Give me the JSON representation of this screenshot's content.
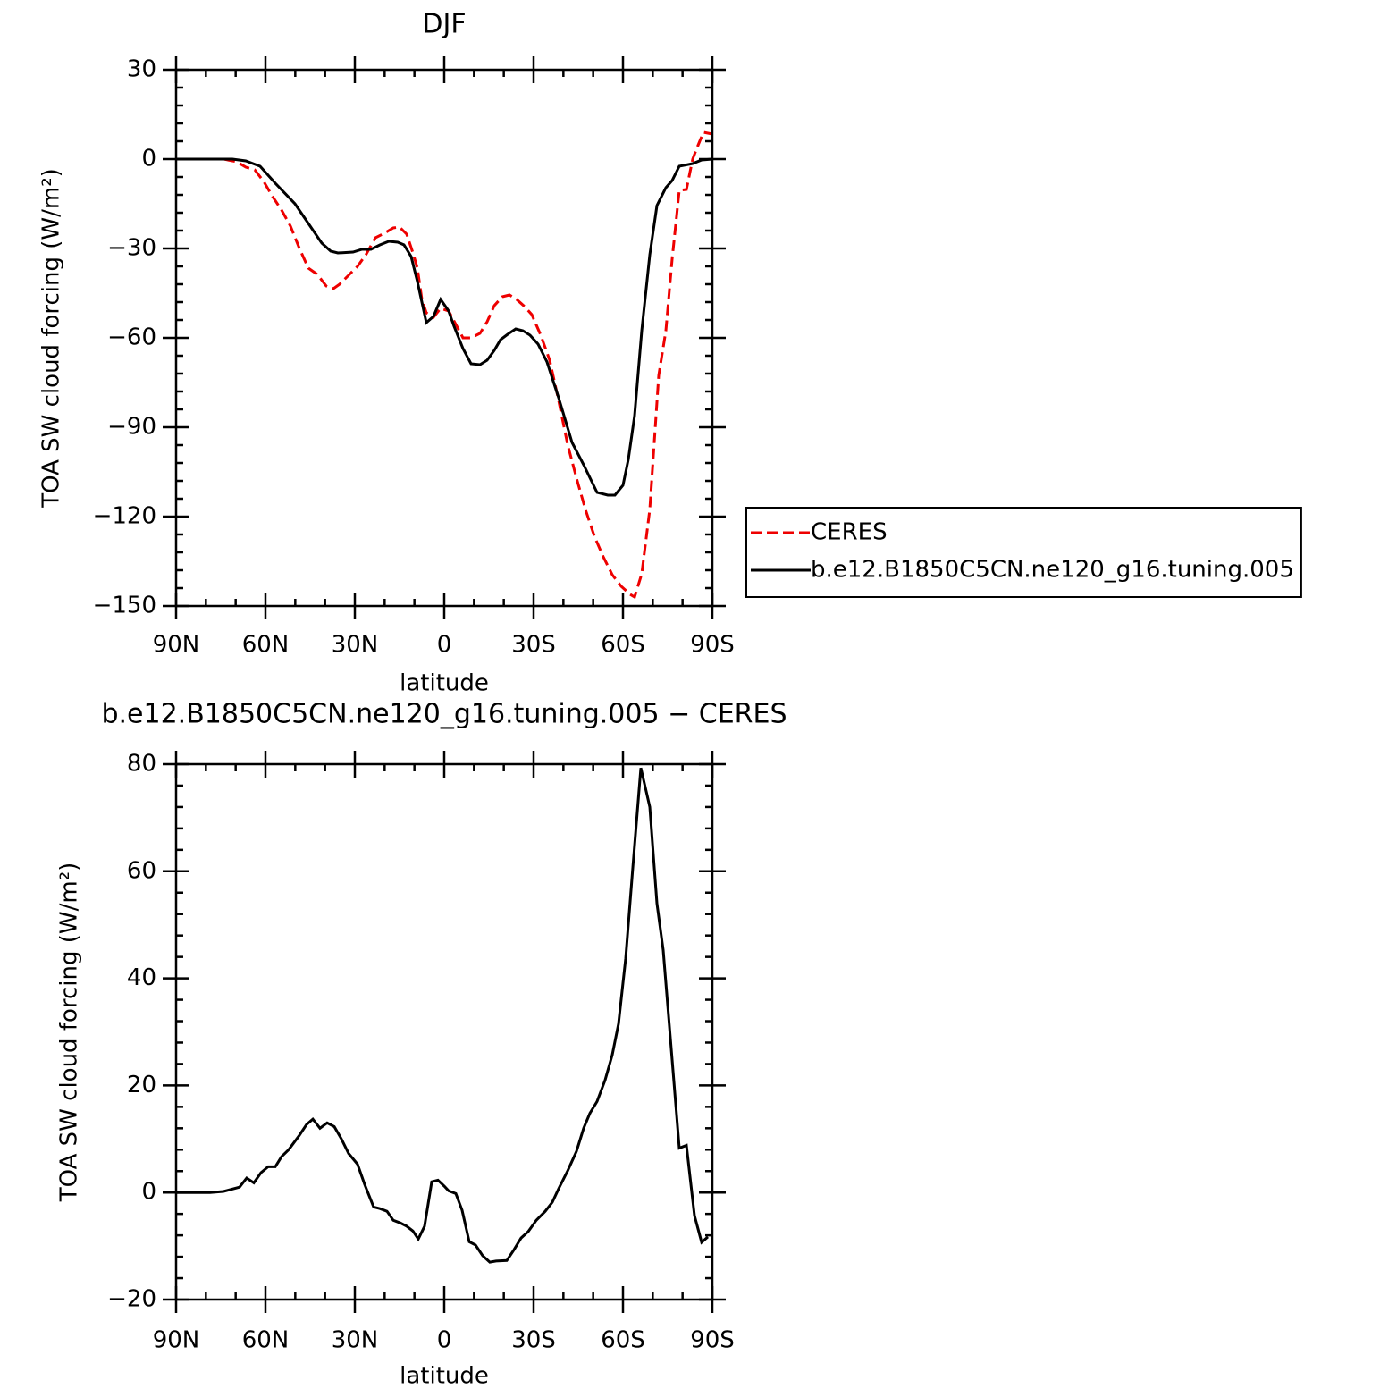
{
  "chart_data": [
    {
      "type": "line",
      "title": "DJF",
      "xlabel": "latitude",
      "ylabel": "TOA SW cloud forcing (W/m²)",
      "xlim": [
        90,
        -90
      ],
      "xticks": [
        {
          "value": 90,
          "label": "90N"
        },
        {
          "value": 60,
          "label": "60N"
        },
        {
          "value": 30,
          "label": "30N"
        },
        0,
        {
          "value": -30,
          "label": "30S"
        },
        {
          "value": -60,
          "label": "60S"
        },
        {
          "value": -90,
          "label": "90S"
        }
      ],
      "xminorticks": [
        80,
        70,
        50,
        40,
        20,
        10,
        -10,
        -20,
        -40,
        -50,
        -70,
        -80
      ],
      "ylim": [
        -150,
        30
      ],
      "yticks": [
        -150,
        -120,
        -90,
        -60,
        -30,
        0,
        30
      ],
      "yminorticks": [
        -144,
        -138,
        -132,
        -126,
        -114,
        -108,
        -102,
        -96,
        -84,
        -78,
        -72,
        -66,
        -54,
        -48,
        -42,
        -36,
        -24,
        -18,
        -12,
        -6,
        6,
        12,
        18,
        24
      ],
      "legend": "right",
      "series": [
        {
          "name": "CERES",
          "color": "#ee0000",
          "dash": "dashed",
          "x": [
            90,
            74.1,
            69.6,
            66.6,
            63.6,
            60.6,
            57.6,
            54.6,
            51.6,
            48.6,
            45.6,
            42.6,
            39.6,
            37.2,
            35.1,
            32.1,
            29.1,
            26.1,
            23.1,
            20.1,
            17.1,
            15,
            12.6,
            10.5,
            9,
            7.5,
            6,
            3.6,
            1.2,
            -1.5,
            -3.9,
            -6.3,
            -9,
            -12,
            -14.4,
            -16.8,
            -19.5,
            -21.9,
            -24.3,
            -27,
            -29.4,
            -32.4,
            -35.4,
            -38.4,
            -41.4,
            -44.4,
            -47.4,
            -50.4,
            -53.4,
            -56.4,
            -59.4,
            -62.4,
            -63.9,
            -66.3,
            -69,
            -72,
            -74.4,
            -76.5,
            -78.9,
            -81.3,
            -83.4,
            -84.9,
            -87,
            -90
          ],
          "values": [
            0,
            0,
            -0.9,
            -2.7,
            -3.6,
            -7.5,
            -12.6,
            -17.1,
            -22.5,
            -30,
            -36.6,
            -38.7,
            -42.6,
            -43.5,
            -42,
            -39,
            -36,
            -31.8,
            -26.4,
            -24.9,
            -23.1,
            -22.8,
            -25.2,
            -31.5,
            -36.6,
            -47.1,
            -51.6,
            -53.1,
            -50.1,
            -51,
            -55.5,
            -60,
            -60,
            -58.5,
            -54.6,
            -49.2,
            -46.2,
            -45.6,
            -47.1,
            -49.5,
            -52.2,
            -59.1,
            -67.5,
            -81,
            -95.7,
            -107.1,
            -117.6,
            -126.6,
            -133.5,
            -139.5,
            -143.4,
            -146.1,
            -147,
            -139.2,
            -117.6,
            -72.6,
            -57.6,
            -33.6,
            -10.5,
            -10.2,
            0,
            3.9,
            9,
            8.4
          ]
        },
        {
          "name": "b.e12.B1850C5CN.ne120_g16.tuning.005",
          "color": "#000000",
          "dash": "solid",
          "x": [
            90,
            71.1,
            66.6,
            61.8,
            56.7,
            50.1,
            45.6,
            41.1,
            38.1,
            35.7,
            30.6,
            27.6,
            24.6,
            21.6,
            18.6,
            15.6,
            13.5,
            11.1,
            9,
            6,
            3.6,
            1.2,
            -1.5,
            -3.3,
            -6.3,
            -9,
            -12,
            -14.4,
            -16.8,
            -18.9,
            -21.3,
            -24,
            -26.4,
            -28.8,
            -31.5,
            -34.5,
            -38.4,
            -42.9,
            -46.8,
            -51.3,
            -54.9,
            -57.3,
            -60,
            -61.8,
            -63.9,
            -66.3,
            -69,
            -71.4,
            -74.4,
            -76.5,
            -78.9,
            -83.4,
            -86.4,
            -90
          ],
          "values": [
            0,
            0,
            -0.6,
            -2.4,
            -8.1,
            -15,
            -21.6,
            -28.2,
            -30.9,
            -31.5,
            -31.2,
            -30.3,
            -30.3,
            -28.8,
            -27.6,
            -27.9,
            -28.8,
            -32.7,
            -41.1,
            -54.9,
            -52.8,
            -47.1,
            -51,
            -56.1,
            -63.6,
            -68.7,
            -69,
            -67.5,
            -64.2,
            -60.6,
            -58.8,
            -57,
            -57.6,
            -59.1,
            -62.1,
            -68.1,
            -80.1,
            -95.1,
            -102.6,
            -111.9,
            -112.8,
            -112.8,
            -109.5,
            -100.8,
            -86.1,
            -57.6,
            -32.1,
            -15.6,
            -9.6,
            -7.2,
            -2.4,
            -1.5,
            -0.3,
            0
          ]
        }
      ]
    },
    {
      "type": "line",
      "title": "b.e12.B1850C5CN.ne120_g16.tuning.005 − CERES",
      "xlabel": "latitude",
      "ylabel": "TOA SW cloud forcing (W/m²)",
      "xlim": [
        90,
        -90
      ],
      "xticks": [
        {
          "value": 90,
          "label": "90N"
        },
        {
          "value": 60,
          "label": "60N"
        },
        {
          "value": 30,
          "label": "30N"
        },
        0,
        {
          "value": -30,
          "label": "30S"
        },
        {
          "value": -60,
          "label": "60S"
        },
        {
          "value": -90,
          "label": "90S"
        }
      ],
      "xminorticks": [
        80,
        70,
        50,
        40,
        20,
        10,
        -10,
        -20,
        -40,
        -50,
        -70,
        -80
      ],
      "ylim": [
        -20,
        80
      ],
      "yticks": [
        -20,
        0,
        20,
        40,
        60,
        80
      ],
      "yminorticks": [
        -16,
        -12,
        -8,
        -4,
        4,
        8,
        12,
        16,
        24,
        28,
        32,
        36,
        44,
        48,
        52,
        56,
        64,
        68,
        72,
        76
      ],
      "series": [
        {
          "color": "#000000",
          "dash": "solid",
          "x": [
            90,
            78.6,
            74.1,
            68.7,
            66.3,
            63.9,
            61.5,
            59.1,
            56.7,
            54.6,
            52.2,
            48.6,
            46.2,
            44.1,
            41.7,
            39.3,
            36.9,
            34.5,
            32.1,
            29.1,
            26.7,
            23.7,
            21.6,
            19.2,
            17.1,
            14.7,
            12.6,
            10.5,
            8.7,
            6.6,
            4.2,
            2.1,
            0,
            -1.5,
            -3.9,
            -6,
            -8.4,
            -10.5,
            -12.9,
            -15.3,
            -17.4,
            -21,
            -23.4,
            -25.8,
            -28.2,
            -30.9,
            -33.9,
            -36.3,
            -38.4,
            -41.4,
            -44.4,
            -46.8,
            -48.9,
            -51.3,
            -54,
            -56.4,
            -58.5,
            -60.9,
            -63.3,
            -66,
            -69,
            -71.4,
            -73.5,
            -76.5,
            -78.9,
            -81.3,
            -84,
            -86.4,
            -88.5
          ],
          "values": [
            0,
            0,
            0.2,
            1,
            2.7,
            1.8,
            3.7,
            4.8,
            4.8,
            6.7,
            8,
            10.7,
            12.7,
            13.7,
            12,
            13,
            12.3,
            10,
            7.3,
            5.3,
            1.5,
            -2.7,
            -3,
            -3.5,
            -5.2,
            -5.7,
            -6.3,
            -7.2,
            -8.7,
            -6.3,
            2,
            2.3,
            1.2,
            0.3,
            -0.2,
            -3.3,
            -9.2,
            -9.8,
            -11.8,
            -13,
            -12.8,
            -12.7,
            -10.7,
            -8.5,
            -7.3,
            -5.2,
            -3.5,
            -1.8,
            0.7,
            4,
            7.7,
            12,
            14.8,
            17,
            21,
            25.7,
            31.5,
            43.7,
            60.7,
            79.3,
            72,
            54,
            45.3,
            24.8,
            8.3,
            8.8,
            -4.3,
            -9.3,
            -8.3
          ]
        }
      ]
    }
  ]
}
